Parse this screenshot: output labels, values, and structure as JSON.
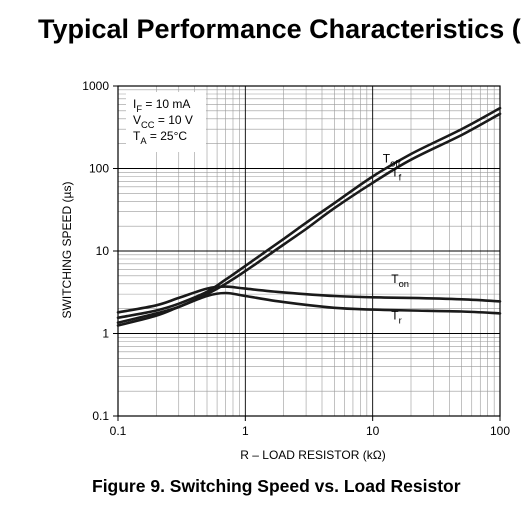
{
  "page": {
    "heading": "Typical Performance Characteristics (",
    "caption": "Figure 9. Switching Speed vs. Load Resistor"
  },
  "chart_data": {
    "type": "line",
    "x_scale": "log",
    "y_scale": "log",
    "xlabel": "R – LOAD RESISTOR (kΩ)",
    "ylabel": "SWITCHING SPEED (µs)",
    "xlim": [
      0.1,
      100
    ],
    "ylim": [
      0.1,
      1000
    ],
    "x_ticks": [
      {
        "value": 0.1,
        "label": "0.1"
      },
      {
        "value": 1,
        "label": "1"
      },
      {
        "value": 10,
        "label": "10"
      },
      {
        "value": 100,
        "label": "100"
      }
    ],
    "y_ticks": [
      {
        "value": 0.1,
        "label": "0.1"
      },
      {
        "value": 1,
        "label": "1"
      },
      {
        "value": 10,
        "label": "10"
      },
      {
        "value": 100,
        "label": "100"
      },
      {
        "value": 1000,
        "label": "1000"
      }
    ],
    "grid": true,
    "conditions": [
      {
        "name": "I",
        "sub": "F",
        "value": " = 10 mA"
      },
      {
        "name": "V",
        "sub": "CC",
        "value": " = 10 V"
      },
      {
        "name": "T",
        "sub": "A",
        "value": " = 25°C"
      }
    ],
    "series": [
      {
        "name": "T",
        "sub": "off",
        "label_at": [
          12,
          132
        ],
        "x": [
          0.1,
          0.2,
          0.3,
          0.5,
          0.7,
          1,
          2,
          3,
          5,
          10,
          20,
          50,
          100
        ],
        "y": [
          1.55,
          1.9,
          2.3,
          3.2,
          4.5,
          6.6,
          14,
          22,
          38,
          80,
          150,
          300,
          540
        ]
      },
      {
        "name": "T",
        "sub": "f",
        "label_at": [
          14,
          90
        ],
        "x": [
          0.1,
          0.2,
          0.3,
          0.5,
          0.7,
          1,
          2,
          3,
          5,
          10,
          20,
          50,
          100
        ],
        "y": [
          1.35,
          1.75,
          2.1,
          3.0,
          4.0,
          5.7,
          12,
          18.5,
          33,
          67,
          128,
          255,
          460
        ]
      },
      {
        "name": "T",
        "sub": "on",
        "label_at": [
          14,
          4.6
        ],
        "x": [
          0.1,
          0.2,
          0.3,
          0.5,
          0.7,
          1,
          2,
          5,
          10,
          20,
          50,
          100
        ],
        "y": [
          1.8,
          2.2,
          2.7,
          3.5,
          3.7,
          3.5,
          3.15,
          2.85,
          2.75,
          2.7,
          2.6,
          2.45
        ]
      },
      {
        "name": "T",
        "sub": "r",
        "label_at": [
          14,
          1.65
        ],
        "x": [
          0.1,
          0.2,
          0.3,
          0.5,
          0.7,
          1,
          2,
          5,
          10,
          20,
          50,
          100
        ],
        "y": [
          1.25,
          1.65,
          2.1,
          2.85,
          3.1,
          2.85,
          2.4,
          2.05,
          1.95,
          1.9,
          1.85,
          1.75
        ]
      }
    ]
  }
}
